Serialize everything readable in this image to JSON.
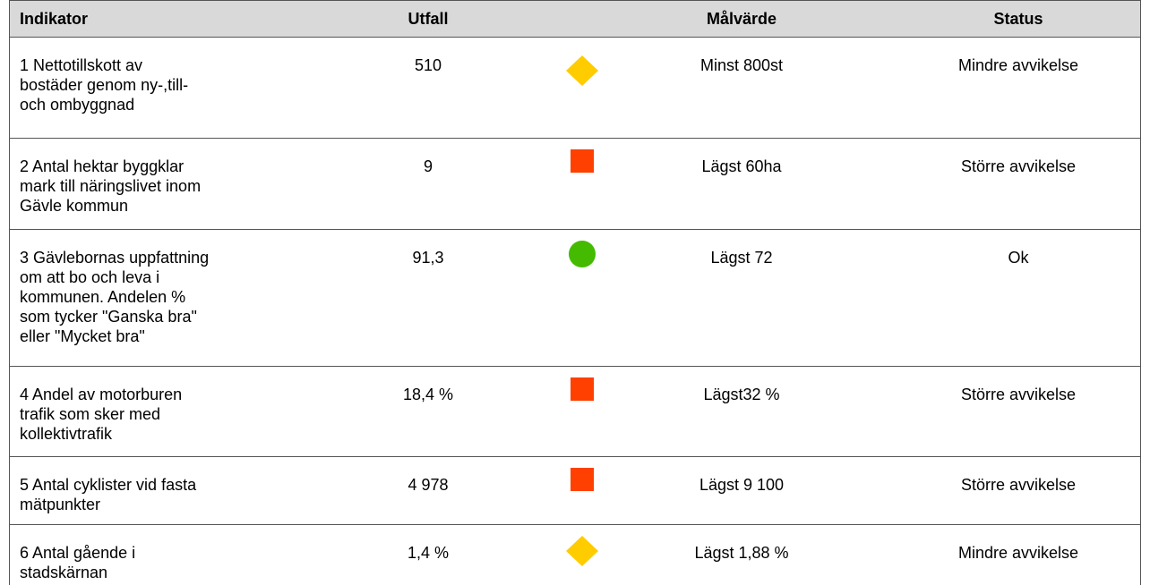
{
  "table": {
    "header": [
      "Indikator",
      "Utfall",
      "Målvärde",
      "Status"
    ],
    "rows": [
      {
        "indicator": [
          "1 Nettotillskott av",
          "bostäder genom ny-,till-",
          "och ombyggnad"
        ],
        "outcome": "510",
        "target": "Minst 800st",
        "status": "Mindre avvikelse"
      },
      {
        "indicator": [
          "2 Antal hektar byggklar",
          "mark till näringslivet inom",
          "Gävle kommun"
        ],
        "outcome": "9",
        "target": "Lägst 60ha",
        "status": "Större avvikelse"
      },
      {
        "indicator": [
          "3 Gävlebornas uppfattning",
          "om att bo och leva i",
          "kommunen. Andelen %",
          "som tycker \"Ganska bra\"",
          "eller \"Mycket bra\""
        ],
        "outcome": "91,3",
        "target": "Lägst 72",
        "status": "Ok"
      },
      {
        "indicator": [
          "4 Andel av motorburen",
          "trafik som sker med",
          "kollektivtrafik"
        ],
        "outcome": "18,4 %",
        "target": "Lägst32 %",
        "status": "Större avvikelse"
      },
      {
        "indicator": [
          "5 Antal cyklister vid fasta",
          "mätpunkter"
        ],
        "outcome": "4 978",
        "target": "Lägst 9 100",
        "status": "Större avvikelse"
      },
      {
        "indicator": [
          "6 Antal gående i",
          "stadskärnan"
        ],
        "outcome": "1,4 %",
        "target": "Lägst 1,88 %",
        "status": "Mindre avvikelse"
      }
    ]
  }
}
